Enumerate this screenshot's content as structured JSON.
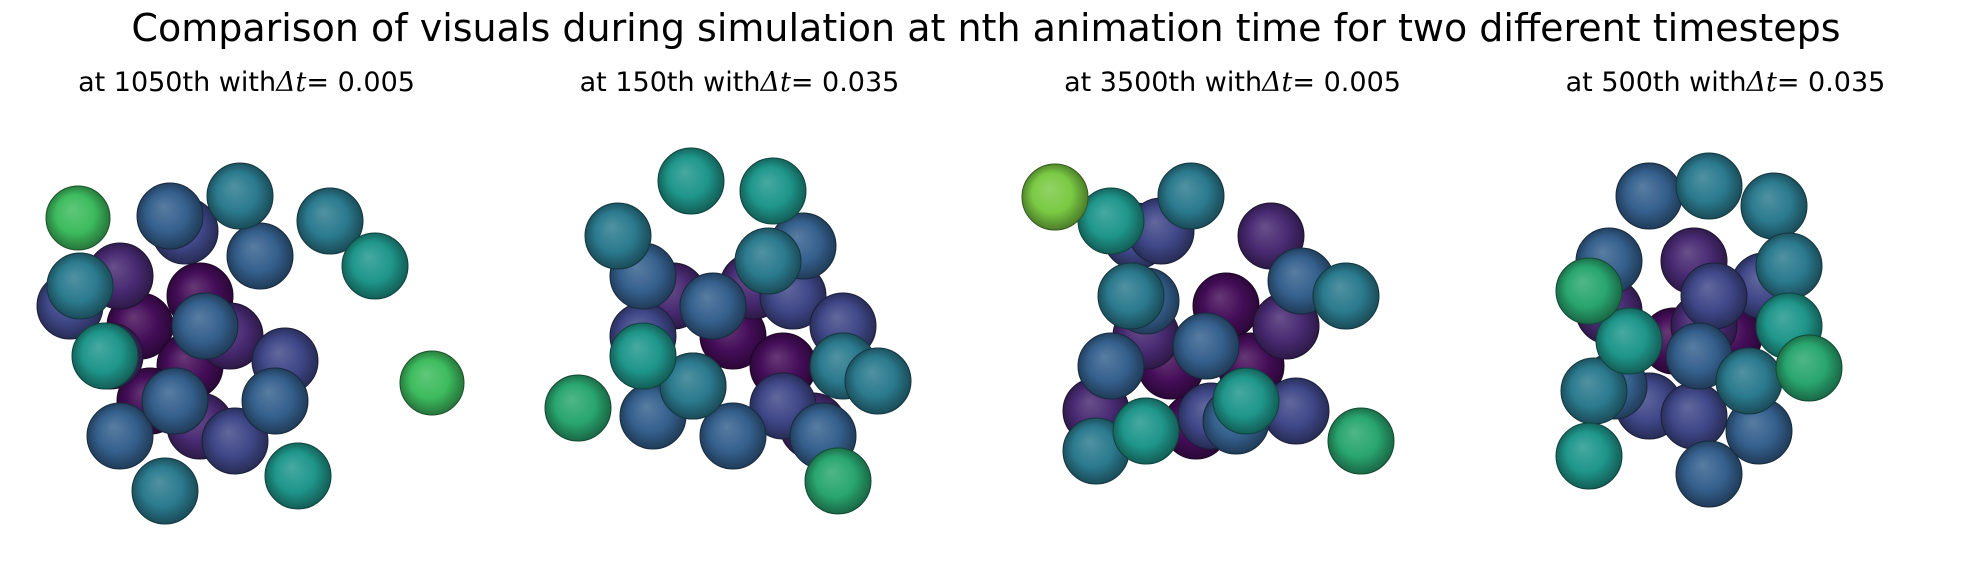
{
  "figure": {
    "suptitle": "Comparison of visuals during simulation at nth animation time for two different timesteps"
  },
  "palette": {
    "deep_purple": "#440d58",
    "purple": "#482a72",
    "indigo": "#3f4788",
    "slate_blue": "#35608d",
    "teal_blue": "#2b7a8e",
    "teal": "#1f968b",
    "sea_green": "#29a66f",
    "green": "#3dbb5e",
    "lime": "#7ac943"
  },
  "panels": [
    {
      "title_prefix": "at 1050th with ",
      "title_math": "Δt",
      "title_suffix": " = 0.005",
      "sphere_colors": [
        "deep_purple",
        "deep_purple",
        "deep_purple",
        "deep_purple",
        "purple",
        "purple",
        "purple",
        "purple",
        "indigo",
        "indigo",
        "indigo",
        "indigo",
        "slate_blue",
        "slate_blue",
        "slate_blue",
        "slate_blue",
        "slate_blue",
        "slate_blue",
        "teal_blue",
        "teal_blue",
        "teal_blue",
        "teal_blue",
        "teal",
        "teal",
        "teal",
        "green",
        "green"
      ]
    },
    {
      "title_prefix": "at 150th with ",
      "title_math": "Δt",
      "title_suffix": " = 0.035",
      "sphere_colors": [
        "deep_purple",
        "deep_purple",
        "deep_purple",
        "purple",
        "purple",
        "purple",
        "indigo",
        "indigo",
        "indigo",
        "indigo",
        "slate_blue",
        "slate_blue",
        "slate_blue",
        "slate_blue",
        "slate_blue",
        "slate_blue",
        "teal_blue",
        "teal_blue",
        "teal_blue",
        "teal_blue",
        "teal_blue",
        "teal",
        "teal",
        "teal",
        "sea_green",
        "sea_green"
      ]
    },
    {
      "title_prefix": "at 3500th with ",
      "title_math": "Δt",
      "title_suffix": " = 0.005",
      "sphere_colors": [
        "deep_purple",
        "deep_purple",
        "deep_purple",
        "deep_purple",
        "purple",
        "purple",
        "purple",
        "purple",
        "indigo",
        "indigo",
        "indigo",
        "indigo",
        "slate_blue",
        "slate_blue",
        "slate_blue",
        "slate_blue",
        "slate_blue",
        "teal_blue",
        "teal_blue",
        "teal_blue",
        "teal_blue",
        "teal",
        "teal",
        "teal",
        "sea_green",
        "lime"
      ]
    },
    {
      "title_prefix": "at 500th with ",
      "title_math": "Δt",
      "title_suffix": " = 0.035",
      "sphere_colors": [
        "deep_purple",
        "deep_purple",
        "purple",
        "purple",
        "purple",
        "indigo",
        "indigo",
        "indigo",
        "indigo",
        "slate_blue",
        "slate_blue",
        "slate_blue",
        "slate_blue",
        "slate_blue",
        "slate_blue",
        "teal_blue",
        "teal_blue",
        "teal_blue",
        "teal_blue",
        "teal_blue",
        "teal",
        "teal",
        "teal",
        "sea_green",
        "sea_green"
      ]
    }
  ]
}
